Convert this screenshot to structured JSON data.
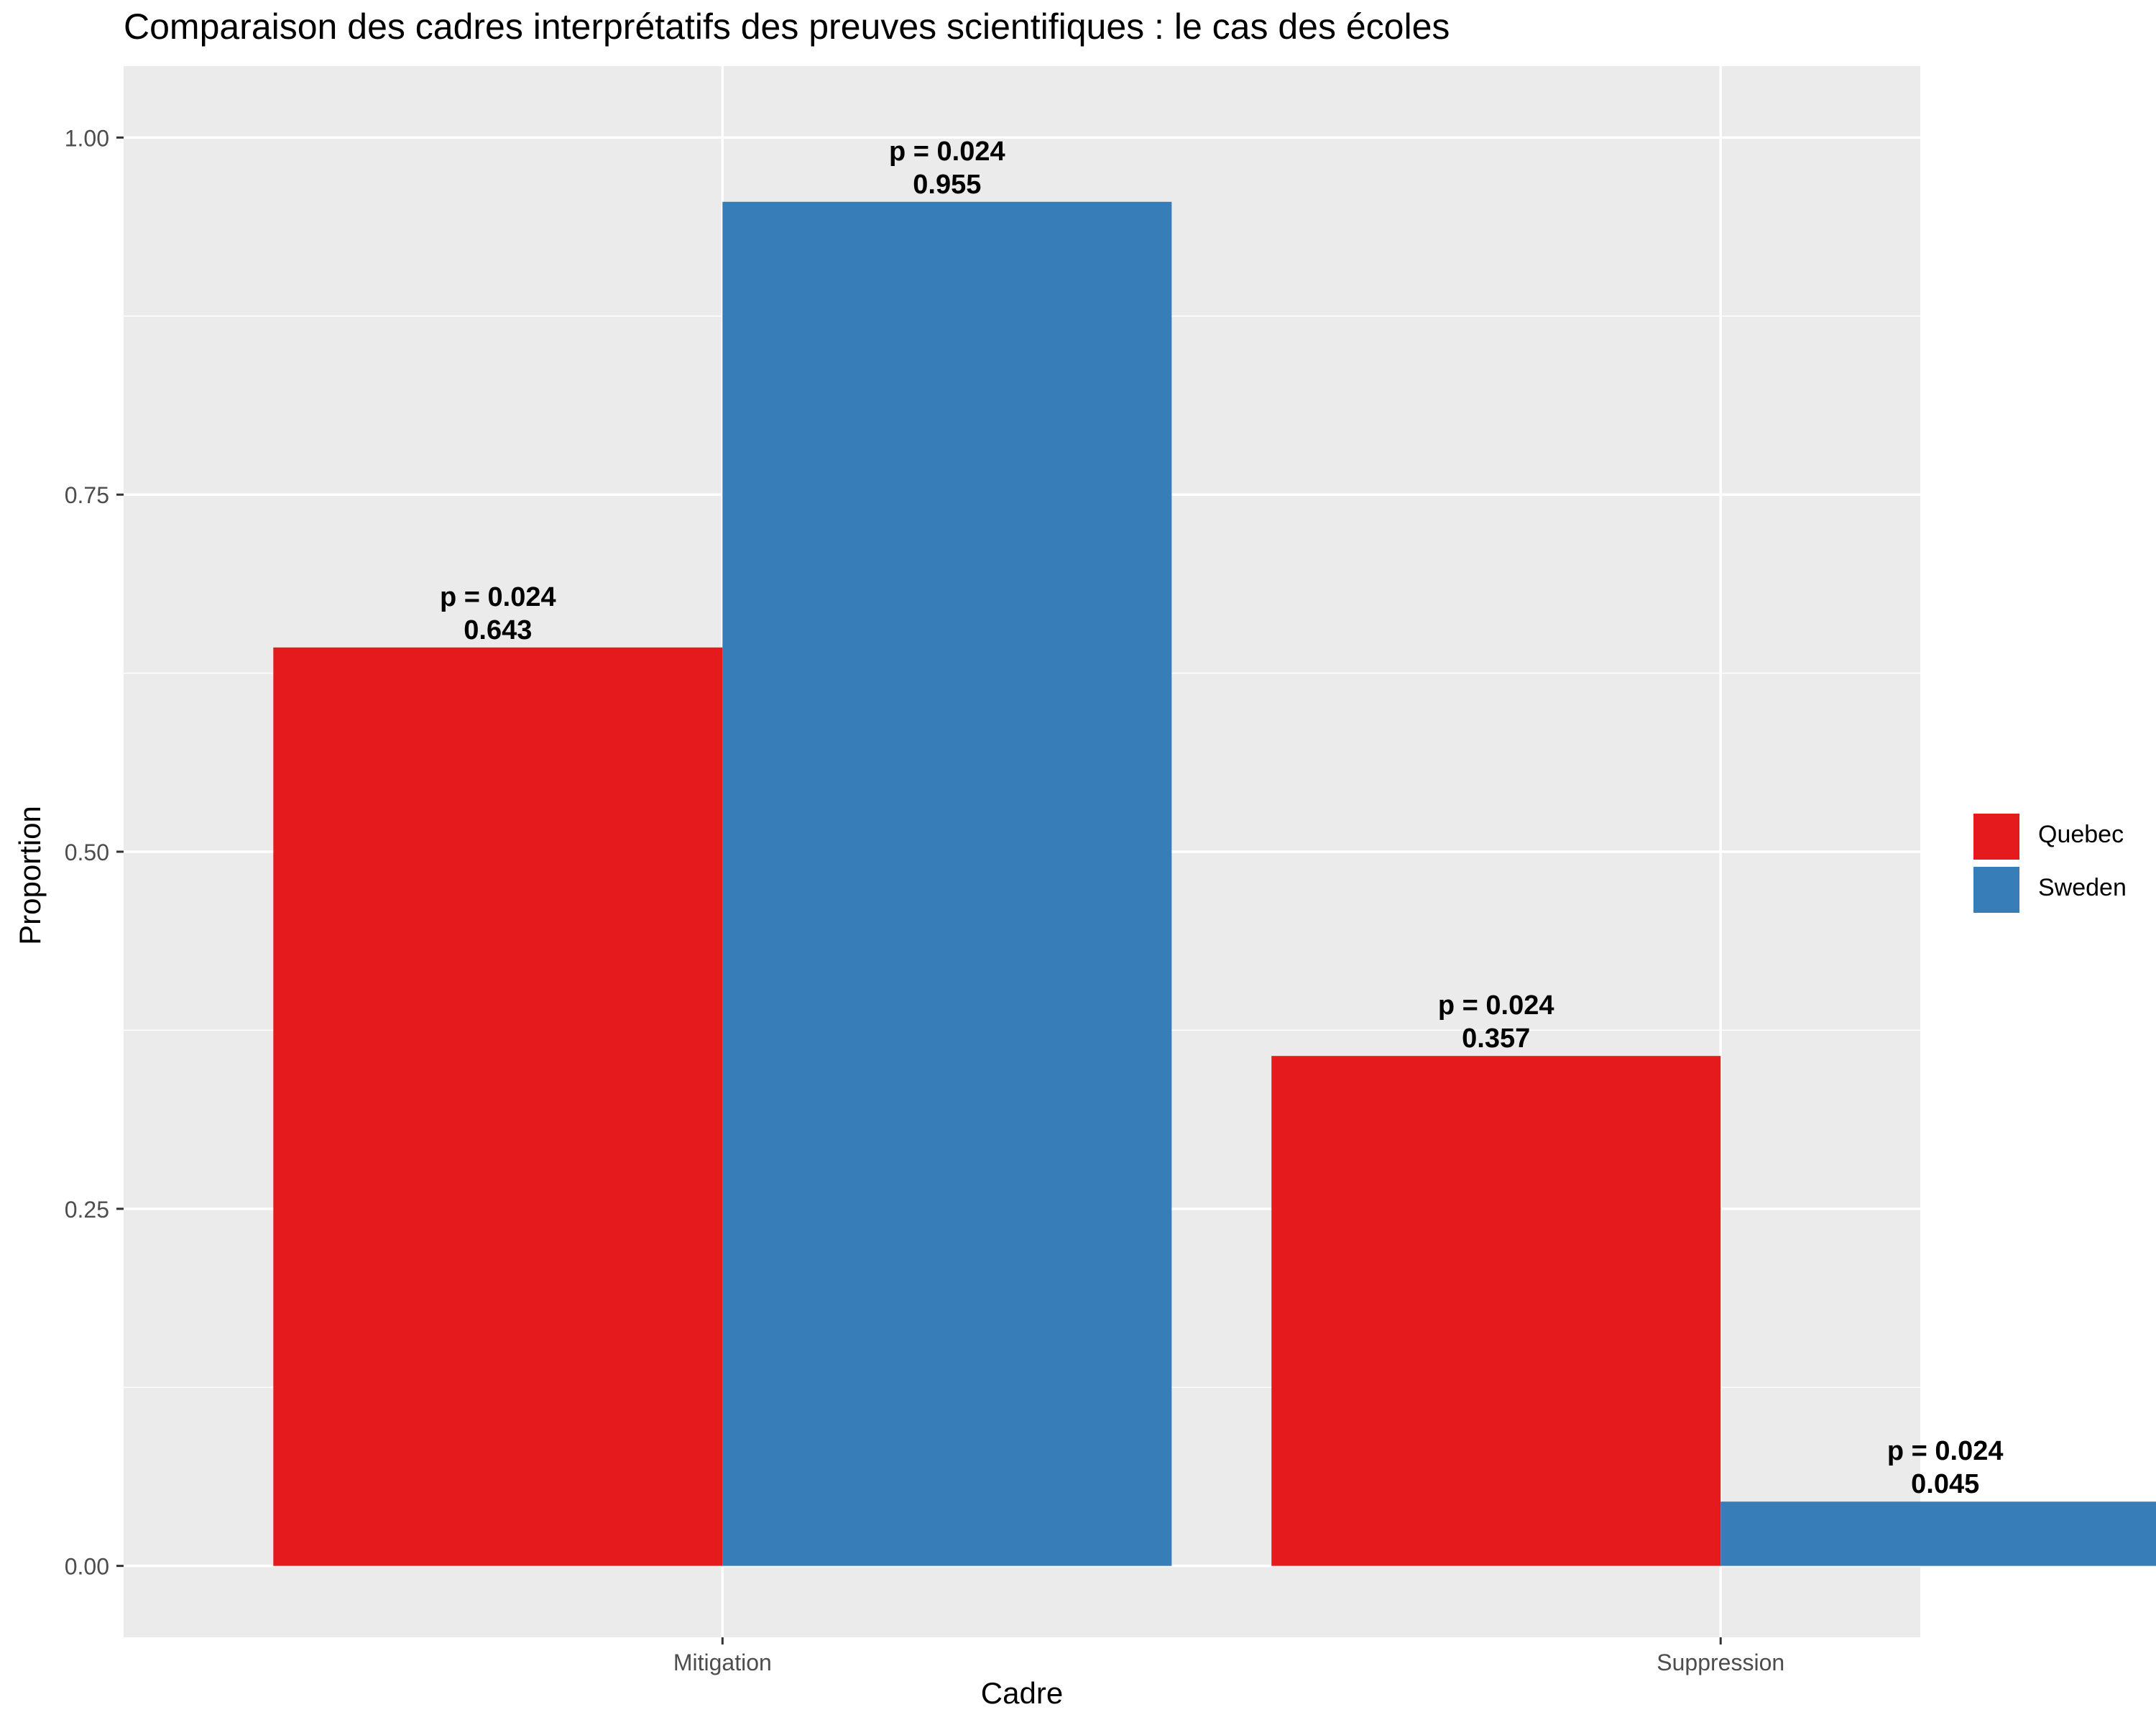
{
  "chart_data": {
    "type": "bar",
    "title": "Comparaison des cadres interprétatifs des preuves scientifiques : le cas des écoles",
    "xlabel": "Cadre",
    "ylabel": "Proportion",
    "categories": [
      "Mitigation",
      "Suppression"
    ],
    "series": [
      {
        "name": "Quebec",
        "values": [
          0.643,
          0.357
        ],
        "labels": [
          "p = 0.024\n0.643",
          "p = 0.024\n0.357"
        ]
      },
      {
        "name": "Sweden",
        "values": [
          0.955,
          0.045
        ],
        "labels": [
          "p = 0.024\n0.955",
          "p = 0.024\n0.045"
        ]
      }
    ],
    "ylim": [
      -0.05,
      1.05
    ],
    "yticks": [
      0,
      0.25,
      0.5,
      0.75,
      1
    ],
    "ytick_labels": [
      "0.00",
      "0.25",
      "0.50",
      "0.75",
      "1.00"
    ],
    "grid": true,
    "legend_position": "right",
    "colors": {
      "Quebec": "#E41A1C",
      "Sweden": "#377EB8",
      "panel_background": "#EBEBEB",
      "gridline": "#FFFFFF"
    }
  }
}
